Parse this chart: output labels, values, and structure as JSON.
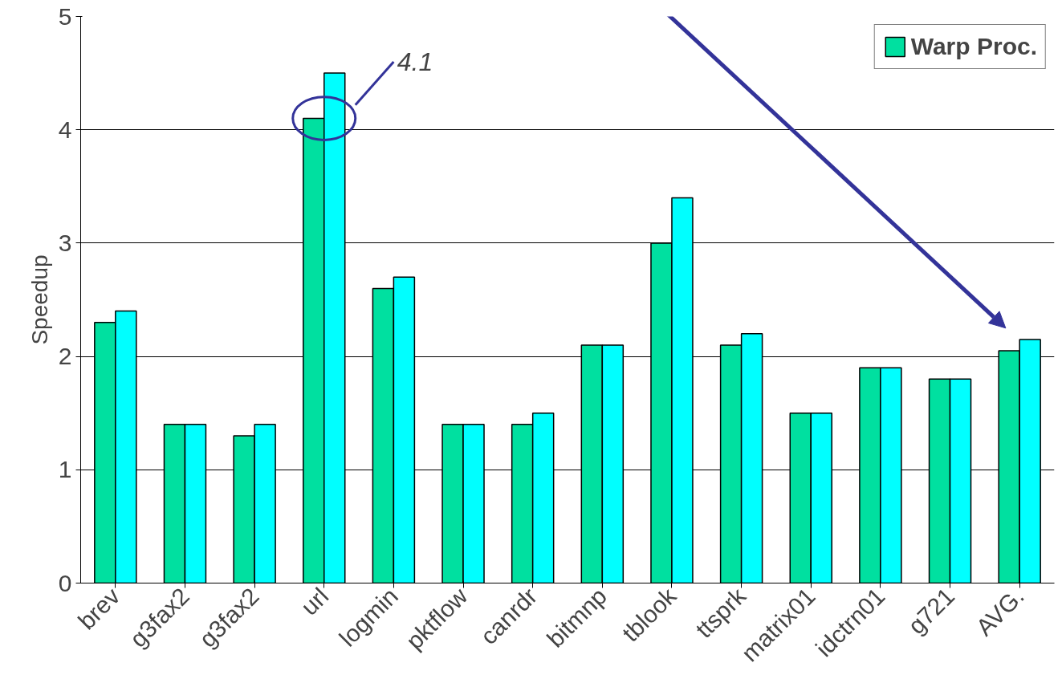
{
  "chart_data": {
    "type": "bar",
    "ylabel": "Speedup",
    "categories": [
      "brev",
      "g3fax2",
      "g3fax2",
      "url",
      "logmin",
      "pktflow",
      "canrdr",
      "bitmnp",
      "tblook",
      "ttsprk",
      "matrix01",
      "idctrn01",
      "g721",
      "AVG."
    ],
    "series": [
      {
        "name": "Warp Proc.",
        "color": "#00e0a0",
        "values": [
          2.3,
          1.4,
          1.3,
          4.1,
          2.6,
          1.4,
          1.4,
          2.1,
          3.0,
          2.1,
          1.5,
          1.9,
          1.8,
          2.05
        ]
      },
      {
        "color": "#00ffff",
        "values": [
          2.4,
          1.4,
          1.4,
          4.5,
          2.7,
          1.4,
          1.5,
          2.1,
          3.4,
          2.2,
          1.5,
          1.9,
          1.8,
          2.15
        ]
      }
    ],
    "ylim": [
      0,
      5
    ],
    "yticks": [
      0,
      1,
      2,
      3,
      4,
      5
    ],
    "grid": "y",
    "legend": "top right",
    "annotations": [
      "4.1"
    ]
  }
}
